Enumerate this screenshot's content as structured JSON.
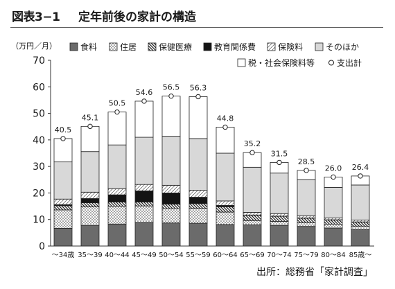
{
  "header": {
    "figure_number": "図表3−1",
    "title": "定年前後の家計の構造"
  },
  "source": "出所：総務省「家計調査」",
  "chart_data": {
    "type": "bar",
    "stacked": true,
    "title": "定年前後の家計の構造",
    "ylabel": "（万円／月）",
    "ylim": [
      0,
      70
    ],
    "yticks": [
      0,
      10,
      20,
      30,
      40,
      50,
      60,
      70
    ],
    "grid": false,
    "legend_position": "top-right",
    "categories": [
      "〜34歳",
      "35〜39",
      "40〜44",
      "45〜49",
      "50〜54",
      "55〜59",
      "60〜64",
      "65〜69",
      "70〜74",
      "75〜79",
      "80〜84",
      "85歳〜"
    ],
    "series": [
      {
        "name": "食料",
        "pattern": "dark-gray",
        "values": [
          6.7,
          7.8,
          8.3,
          8.9,
          8.7,
          8.6,
          8.1,
          8.0,
          7.8,
          7.4,
          6.8,
          6.2
        ]
      },
      {
        "name": "住居",
        "pattern": "dots",
        "values": [
          6.9,
          7.0,
          6.7,
          6.2,
          5.4,
          5.6,
          4.7,
          1.6,
          1.5,
          1.4,
          1.4,
          1.3
        ]
      },
      {
        "name": "保健医療",
        "pattern": "hatch-back",
        "values": [
          1.6,
          1.5,
          1.6,
          1.5,
          1.7,
          1.8,
          2.0,
          2.0,
          1.9,
          1.7,
          1.6,
          1.5
        ]
      },
      {
        "name": "教育関係費",
        "pattern": "black",
        "values": [
          0.4,
          1.6,
          2.7,
          4.2,
          4.2,
          2.4,
          0.5,
          0.1,
          0.1,
          0.1,
          0.1,
          0.1
        ]
      },
      {
        "name": "保険料",
        "pattern": "hatch-forward",
        "values": [
          2.1,
          2.4,
          2.3,
          2.4,
          2.9,
          2.6,
          1.7,
          1.0,
          0.9,
          0.8,
          0.7,
          0.7
        ]
      },
      {
        "name": "そのほか",
        "pattern": "light-gray",
        "values": [
          14.0,
          15.3,
          16.5,
          17.8,
          18.5,
          19.5,
          18.0,
          17.0,
          15.3,
          13.6,
          11.5,
          13.2
        ]
      },
      {
        "name": "税・社会保険料等",
        "pattern": "white",
        "values": [
          8.8,
          9.5,
          12.4,
          13.6,
          15.1,
          15.8,
          9.8,
          5.5,
          4.0,
          3.5,
          3.9,
          3.4
        ]
      }
    ],
    "totals_series": {
      "name": "支出計",
      "marker": "circle",
      "values": [
        40.5,
        45.1,
        50.5,
        54.6,
        56.5,
        56.3,
        44.8,
        35.2,
        31.5,
        28.5,
        26.0,
        26.4
      ]
    }
  }
}
